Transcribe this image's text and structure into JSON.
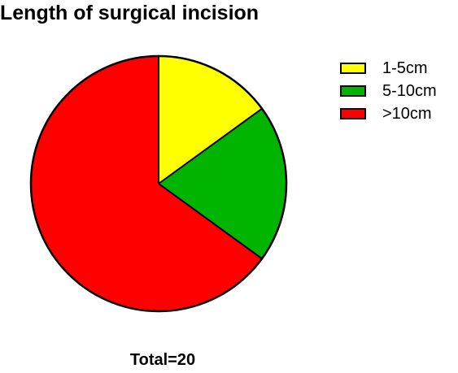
{
  "chart_data": {
    "type": "pie",
    "title": "Length of surgical incision",
    "categories": [
      "1-5cm",
      "5-10cm",
      ">10cm"
    ],
    "values": [
      3,
      4,
      13
    ],
    "colors": [
      "#ffff00",
      "#00b400",
      "#ff0000"
    ],
    "start_angle": "12 o'clock",
    "direction": "clockwise",
    "legend_position": "top-right",
    "footer": "Total=20"
  }
}
